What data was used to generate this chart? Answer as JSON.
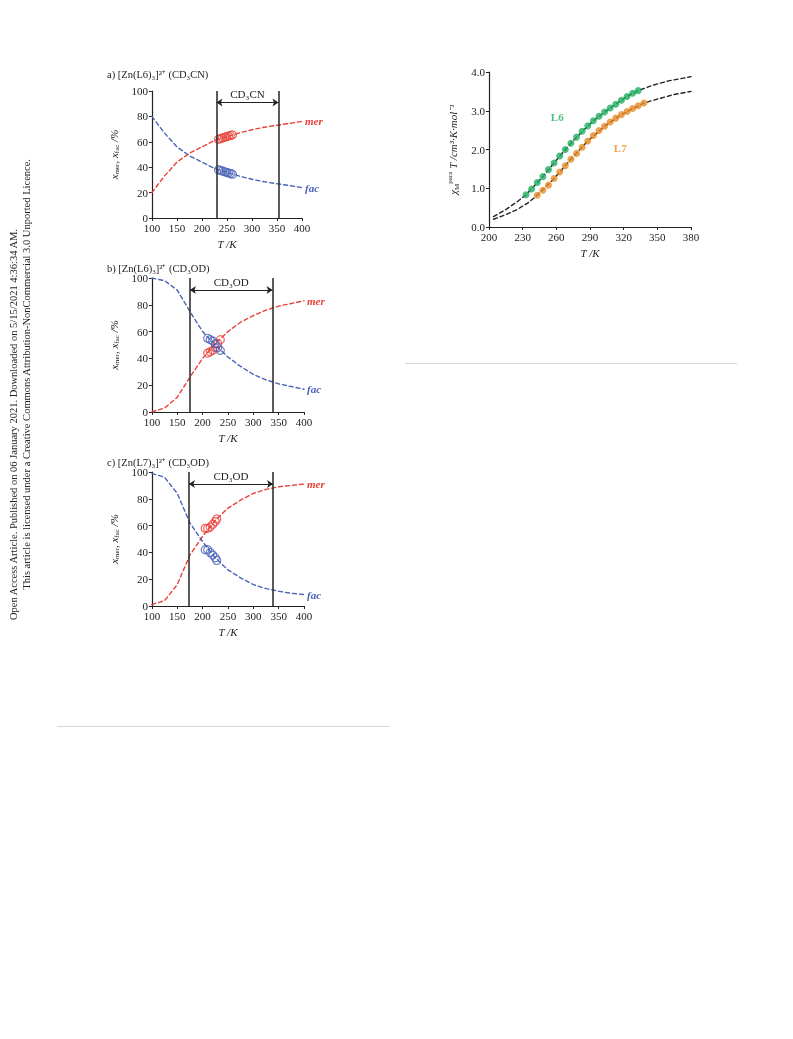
{
  "chart_data": [
    {
      "type": "line",
      "title": "a) [Zn(L6)₃]²⁺ (CD₃CN)",
      "xlabel": "T /K",
      "ylabel": "x$_{mer}$, x$_{fac}$ /%",
      "xlim": [
        100,
        400
      ],
      "xticks": [
        100,
        150,
        200,
        250,
        300,
        350,
        400
      ],
      "ylim": [
        0,
        100
      ],
      "yticks": [
        0,
        20,
        40,
        60,
        80,
        100
      ],
      "grid": false,
      "legend": false,
      "series": [
        {
          "name": "mer",
          "type": "line",
          "color": "#e8413a",
          "line_style": "dashed",
          "marker": "none",
          "x": [
            100,
            125,
            150,
            175,
            200,
            225,
            250,
            275,
            300,
            325,
            350,
            375,
            400
          ],
          "values": [
            20,
            33,
            44,
            51,
            56,
            61,
            64,
            67,
            69.5,
            71.5,
            73,
            74.5,
            76
          ]
        },
        {
          "name": "fac",
          "type": "line",
          "color": "#4a63b8",
          "line_style": "dashed",
          "marker": "none",
          "x": [
            100,
            125,
            150,
            175,
            200,
            225,
            250,
            275,
            300,
            325,
            350,
            375,
            400
          ],
          "values": [
            80,
            67,
            56,
            49,
            44,
            39,
            36,
            33,
            30.5,
            28.5,
            27,
            25.5,
            24
          ]
        },
        {
          "type": "scatter",
          "color": "#e8413a",
          "marker": "circle",
          "x": [
            233,
            237,
            241,
            245,
            249,
            253,
            257,
            261
          ],
          "values": [
            62,
            62.5,
            63,
            63.5,
            64,
            64.5,
            65,
            65.5
          ]
        },
        {
          "type": "scatter",
          "color": "#4a63b8",
          "marker": "circle",
          "x": [
            233,
            237,
            241,
            245,
            249,
            253,
            257,
            261
          ],
          "values": [
            38,
            37.5,
            37,
            36.5,
            36,
            35.5,
            35,
            34.5
          ]
        }
      ],
      "ref_lines": [
        {
          "axis": "x",
          "value": 229,
          "color": "#333333"
        },
        {
          "axis": "x",
          "value": 353,
          "color": "#333333"
        }
      ],
      "annotations": [
        "CD₃CN",
        "Open Access Article. Published on 06 January 2021. Downloaded on 5/15/2021 4:36:34 AM.",
        "This article is licensed under a Creative Commons Attribution-NonCommercial 3.0 Unported Licence."
      ]
    },
    {
      "type": "line",
      "title": "b) [Zn(L6)₃]²⁺ (CD₃OD)",
      "xlabel": "T /K",
      "ylabel": "x$_{mer}$, x$_{fac}$ /%",
      "xlim": [
        100,
        400
      ],
      "xticks": [
        100,
        150,
        200,
        250,
        300,
        350,
        400
      ],
      "ylim": [
        0,
        100
      ],
      "yticks": [
        0,
        20,
        40,
        60,
        80,
        100
      ],
      "grid": false,
      "legend": false,
      "series": [
        {
          "name": "mer",
          "type": "line",
          "color": "#e8413a",
          "line_style": "dashed",
          "marker": "none",
          "x": [
            100,
            125,
            150,
            175,
            200,
            225,
            250,
            275,
            300,
            325,
            350,
            375,
            400
          ],
          "values": [
            0,
            3,
            11,
            26,
            40,
            51,
            60,
            67,
            72,
            76,
            79,
            81,
            83
          ]
        },
        {
          "name": "fac",
          "type": "line",
          "color": "#4a63b8",
          "line_style": "dashed",
          "marker": "none",
          "x": [
            100,
            125,
            150,
            175,
            200,
            225,
            250,
            275,
            300,
            325,
            350,
            375,
            400
          ],
          "values": [
            100,
            98,
            91,
            75,
            60,
            50,
            41,
            34,
            28,
            24,
            21,
            19,
            17
          ]
        },
        {
          "type": "scatter",
          "color": "#e8413a",
          "marker": "circle",
          "x": [
            210,
            215,
            220,
            225,
            230,
            235
          ],
          "values": [
            44,
            45,
            46,
            48,
            51,
            54
          ]
        },
        {
          "type": "scatter",
          "color": "#4a63b8",
          "marker": "circle",
          "x": [
            210,
            215,
            220,
            225,
            230,
            235
          ],
          "values": [
            55,
            54,
            53,
            51,
            48,
            46
          ]
        }
      ],
      "ref_lines": [
        {
          "axis": "x",
          "value": 175,
          "color": "#333333"
        },
        {
          "axis": "x",
          "value": 338,
          "color": "#333333"
        }
      ],
      "annotations": [
        "CD₃OD"
      ]
    },
    {
      "type": "line",
      "title": "c) [Zn(L7)₃]²⁺ (CD₃OD)",
      "xlabel": "T /K",
      "ylabel": "x$_{mer}$, x$_{fac}$ /%",
      "xlim": [
        100,
        400
      ],
      "xticks": [
        100,
        150,
        200,
        250,
        300,
        350,
        400
      ],
      "ylim": [
        0,
        100
      ],
      "yticks": [
        0,
        20,
        40,
        60,
        80,
        100
      ],
      "grid": false,
      "legend": false,
      "series": [
        {
          "name": "mer",
          "type": "line",
          "color": "#e8413a",
          "line_style": "dashed",
          "marker": "none",
          "x": [
            100,
            125,
            150,
            175,
            200,
            225,
            250,
            275,
            300,
            325,
            350,
            375,
            400
          ],
          "values": [
            1,
            4,
            16,
            38,
            52,
            64,
            73,
            79,
            84,
            87,
            89,
            90,
            91
          ]
        },
        {
          "name": "fac",
          "type": "line",
          "color": "#4a63b8",
          "line_style": "dashed",
          "marker": "none",
          "x": [
            100,
            125,
            150,
            175,
            200,
            225,
            250,
            275,
            300,
            325,
            350,
            375,
            400
          ],
          "values": [
            99,
            96,
            84,
            62,
            48,
            36,
            27,
            21,
            16,
            13,
            11,
            9.5,
            8.5
          ]
        },
        {
          "type": "scatter",
          "color": "#e8413a",
          "marker": "circle",
          "x": [
            205,
            210,
            215,
            220,
            225,
            228
          ],
          "values": [
            58,
            58,
            59,
            61,
            63,
            65
          ]
        },
        {
          "type": "scatter",
          "color": "#4a63b8",
          "marker": "circle",
          "x": [
            205,
            210,
            215,
            220,
            225,
            228
          ],
          "values": [
            42,
            42,
            40,
            38,
            36,
            34
          ]
        }
      ],
      "ref_lines": [
        {
          "axis": "x",
          "value": 173,
          "color": "#333333"
        },
        {
          "axis": "x",
          "value": 339,
          "color": "#333333"
        }
      ],
      "annotations": [
        "CD₃OD"
      ]
    },
    {
      "type": "scatter",
      "xlabel": "T /K",
      "ylabel": "χ$_{M}$$^{para}$ T /cm³·K·mol⁻¹",
      "xlim": [
        200,
        380
      ],
      "xticks": [
        200,
        230,
        260,
        290,
        320,
        350,
        380
      ],
      "ylim": [
        0,
        4
      ],
      "yticks": [
        {
          "value": 0,
          "label": "0.0"
        },
        {
          "value": 1,
          "label": "1.0"
        },
        {
          "value": 2,
          "label": "2.0"
        },
        {
          "value": 3,
          "label": "3.0"
        },
        {
          "value": 4,
          "label": "4.0"
        }
      ],
      "grid": false,
      "legend": false,
      "series": [
        {
          "type": "line",
          "color": "#222222",
          "line_style": "dashed",
          "marker": "none",
          "x": [
            204,
            215,
            225,
            233,
            248,
            263,
            278,
            293,
            308,
            323,
            333,
            345,
            360,
            380
          ],
          "values": [
            0.27,
            0.45,
            0.65,
            0.83,
            1.3,
            1.83,
            2.32,
            2.74,
            3.07,
            3.37,
            3.52,
            3.65,
            3.77,
            3.88
          ]
        },
        {
          "type": "line",
          "color": "#222222",
          "line_style": "dashed",
          "marker": "none",
          "x": [
            204,
            215,
            225,
            235,
            243,
            258,
            273,
            288,
            303,
            318,
            338,
            350,
            365,
            380
          ],
          "values": [
            0.2,
            0.32,
            0.45,
            0.63,
            0.82,
            1.25,
            1.75,
            2.22,
            2.6,
            2.9,
            3.2,
            3.3,
            3.42,
            3.5
          ]
        },
        {
          "name": "L6",
          "type": "scatter",
          "color": "#21b062",
          "marker": "circle",
          "x": [
            233,
            238,
            243,
            248,
            253,
            258,
            263,
            268,
            273,
            278,
            283,
            288,
            293,
            298,
            303,
            308,
            313,
            318,
            323,
            328,
            333
          ],
          "values": [
            0.83,
            0.98,
            1.15,
            1.3,
            1.48,
            1.65,
            1.83,
            2.0,
            2.16,
            2.32,
            2.47,
            2.61,
            2.74,
            2.86,
            2.97,
            3.07,
            3.17,
            3.27,
            3.37,
            3.45,
            3.52
          ]
        },
        {
          "name": "L7",
          "type": "scatter",
          "color": "#e98c26",
          "marker": "circle",
          "x": [
            243,
            248,
            253,
            258,
            263,
            268,
            273,
            278,
            283,
            288,
            293,
            298,
            303,
            308,
            313,
            318,
            323,
            328,
            333,
            338
          ],
          "values": [
            0.82,
            0.95,
            1.08,
            1.25,
            1.42,
            1.58,
            1.75,
            1.9,
            2.06,
            2.22,
            2.36,
            2.49,
            2.6,
            2.71,
            2.81,
            2.9,
            2.98,
            3.06,
            3.13,
            3.2
          ]
        }
      ]
    }
  ]
}
